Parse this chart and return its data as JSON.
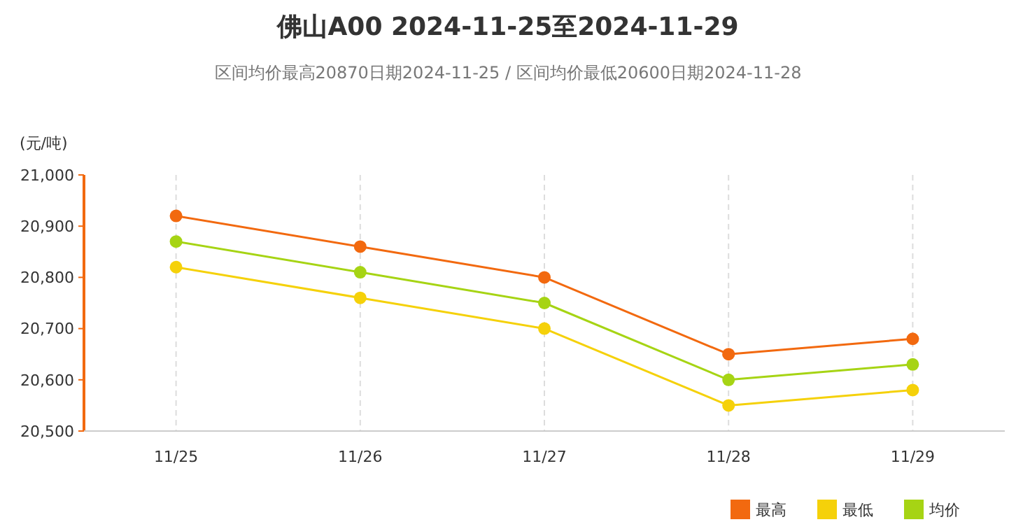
{
  "chart_data": {
    "type": "line",
    "title": "佛山A00 2024-11-25至2024-11-29",
    "subtitle": "区间均价最高20870日期2024-11-25 / 区间均价最低20600日期2024-11-28",
    "ylabel": "(元/吨)",
    "categories": [
      "11/25",
      "11/26",
      "11/27",
      "11/28",
      "11/29"
    ],
    "series": [
      {
        "name": "最高",
        "color": "#f2690f",
        "values": [
          20920,
          20860,
          20800,
          20650,
          20680
        ]
      },
      {
        "name": "最低",
        "color": "#f5d10a",
        "values": [
          20820,
          20760,
          20700,
          20550,
          20580
        ]
      },
      {
        "name": "均价",
        "color": "#a6d414",
        "values": [
          20870,
          20810,
          20750,
          20600,
          20630
        ]
      }
    ],
    "ylim": [
      20500,
      21000
    ],
    "yticks": [
      {
        "value": 20500,
        "label": "20,500"
      },
      {
        "value": 20600,
        "label": "20,600"
      },
      {
        "value": 20700,
        "label": "20,700"
      },
      {
        "value": 20800,
        "label": "20,800"
      },
      {
        "value": 20900,
        "label": "20,900"
      },
      {
        "value": 21000,
        "label": "21,000"
      }
    ],
    "grid": "x",
    "legend": "bottom right",
    "marker": "circle",
    "line_style": "solid"
  }
}
